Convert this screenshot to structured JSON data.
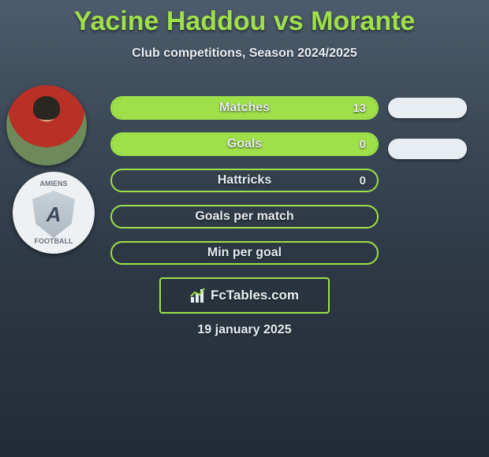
{
  "header": {
    "title": "Yacine Haddou vs Morante",
    "title_color": "#9fe04a",
    "title_fontsize": 34,
    "subtitle": "Club competitions, Season 2024/2025",
    "subtitle_color": "#e8eef2",
    "subtitle_fontsize": 16
  },
  "background": {
    "gradient_top": "#4c5c6c",
    "gradient_bottom": "#232c36"
  },
  "avatars": {
    "player_name": "Yacine Haddou",
    "club_top_text": "AMIENS",
    "club_letter": "A",
    "club_bottom_text": "FOOTBALL"
  },
  "bars": {
    "border_color": "#9fe04a",
    "fill_color": "#9fe04a",
    "label_color": "#e6ecf0",
    "label_fontsize": 16,
    "items": [
      {
        "label": "Matches",
        "value_right": "13",
        "fill_pct": 100
      },
      {
        "label": "Goals",
        "value_right": "0",
        "fill_pct": 100
      },
      {
        "label": "Hattricks",
        "value_right": "0",
        "fill_pct": 0
      },
      {
        "label": "Goals per match",
        "value_right": "",
        "fill_pct": 0
      },
      {
        "label": "Min per goal",
        "value_right": "",
        "fill_pct": 0
      }
    ]
  },
  "right_pills": {
    "count": 2,
    "color": "#e8edf1"
  },
  "logo": {
    "text": "FcTables.com",
    "border_color": "#9fe04a"
  },
  "footer": {
    "date": "19 january 2025"
  }
}
